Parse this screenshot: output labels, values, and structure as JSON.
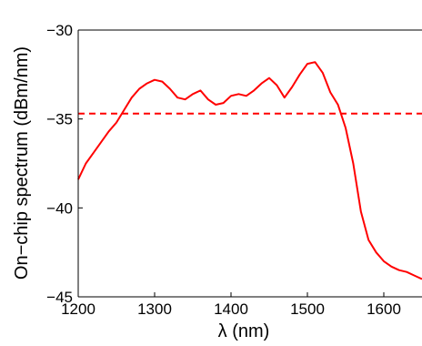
{
  "chart_data": {
    "type": "line",
    "title": "",
    "xlabel": "λ (nm)",
    "ylabel": "On−chip spectrum (dBm/nm)",
    "xlim": [
      1200,
      1650
    ],
    "ylim": [
      -45,
      -30
    ],
    "xticks": [
      1200,
      1300,
      1400,
      1500,
      1600
    ],
    "yticks": [
      -45,
      -40,
      -35,
      -30
    ],
    "xtick_labels": [
      "1200",
      "1300",
      "1400",
      "1500",
      "1600"
    ],
    "ytick_labels": [
      "−45",
      "−40",
      "−35",
      "−30"
    ],
    "grid": false,
    "legend": "none",
    "series": [
      {
        "color": "#ff0000",
        "style": "solid",
        "x": [
          1200,
          1210,
          1220,
          1230,
          1240,
          1250,
          1260,
          1270,
          1280,
          1290,
          1300,
          1310,
          1320,
          1330,
          1340,
          1350,
          1360,
          1370,
          1380,
          1390,
          1400,
          1410,
          1420,
          1430,
          1440,
          1450,
          1460,
          1470,
          1480,
          1490,
          1500,
          1510,
          1520,
          1530,
          1540,
          1550,
          1560,
          1570,
          1580,
          1590,
          1600,
          1610,
          1620,
          1630,
          1640,
          1650
        ],
        "y": [
          -38.4,
          -37.5,
          -36.9,
          -36.3,
          -35.7,
          -35.2,
          -34.5,
          -33.8,
          -33.3,
          -33.0,
          -32.8,
          -32.9,
          -33.3,
          -33.8,
          -33.9,
          -33.6,
          -33.4,
          -33.9,
          -34.2,
          -34.1,
          -33.7,
          -33.6,
          -33.7,
          -33.4,
          -33.0,
          -32.7,
          -33.1,
          -33.8,
          -33.2,
          -32.5,
          -31.9,
          -31.8,
          -32.4,
          -33.5,
          -34.2,
          -35.5,
          -37.5,
          -40.2,
          -41.8,
          -42.5,
          -43.0,
          -43.3,
          -43.5,
          -43.6,
          -43.8,
          -44.0
        ]
      },
      {
        "color": "#ff0000",
        "style": "dashed",
        "x": [
          1200,
          1650
        ],
        "y": [
          -34.7,
          -34.7
        ]
      }
    ]
  }
}
